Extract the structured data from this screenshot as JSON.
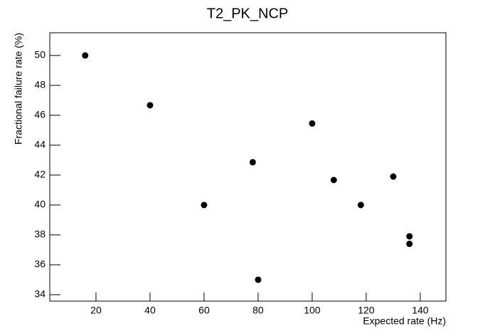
{
  "chart_data": {
    "type": "scatter",
    "title": "T2_PK_NCP",
    "x_label": "Expected rate (Hz)",
    "y_label": "Fractional failure rate (%)",
    "x": [
      16,
      40,
      60,
      78,
      80,
      100,
      108,
      118,
      130,
      136,
      136
    ],
    "series": [
      {
        "values": [
          50,
          46.67,
          40,
          42.86,
          35,
          45.45,
          41.67,
          40,
          41.9,
          37.9,
          37.4
        ],
        "color": "#000000"
      }
    ],
    "xlim": [
      2.9,
      149.5
    ],
    "xticks": [
      20,
      40,
      60,
      80,
      100,
      120,
      140
    ],
    "ylim": [
      33.57,
      51.52
    ],
    "yticks": [
      34,
      36,
      38,
      40,
      42,
      44,
      46,
      48,
      50
    ]
  }
}
